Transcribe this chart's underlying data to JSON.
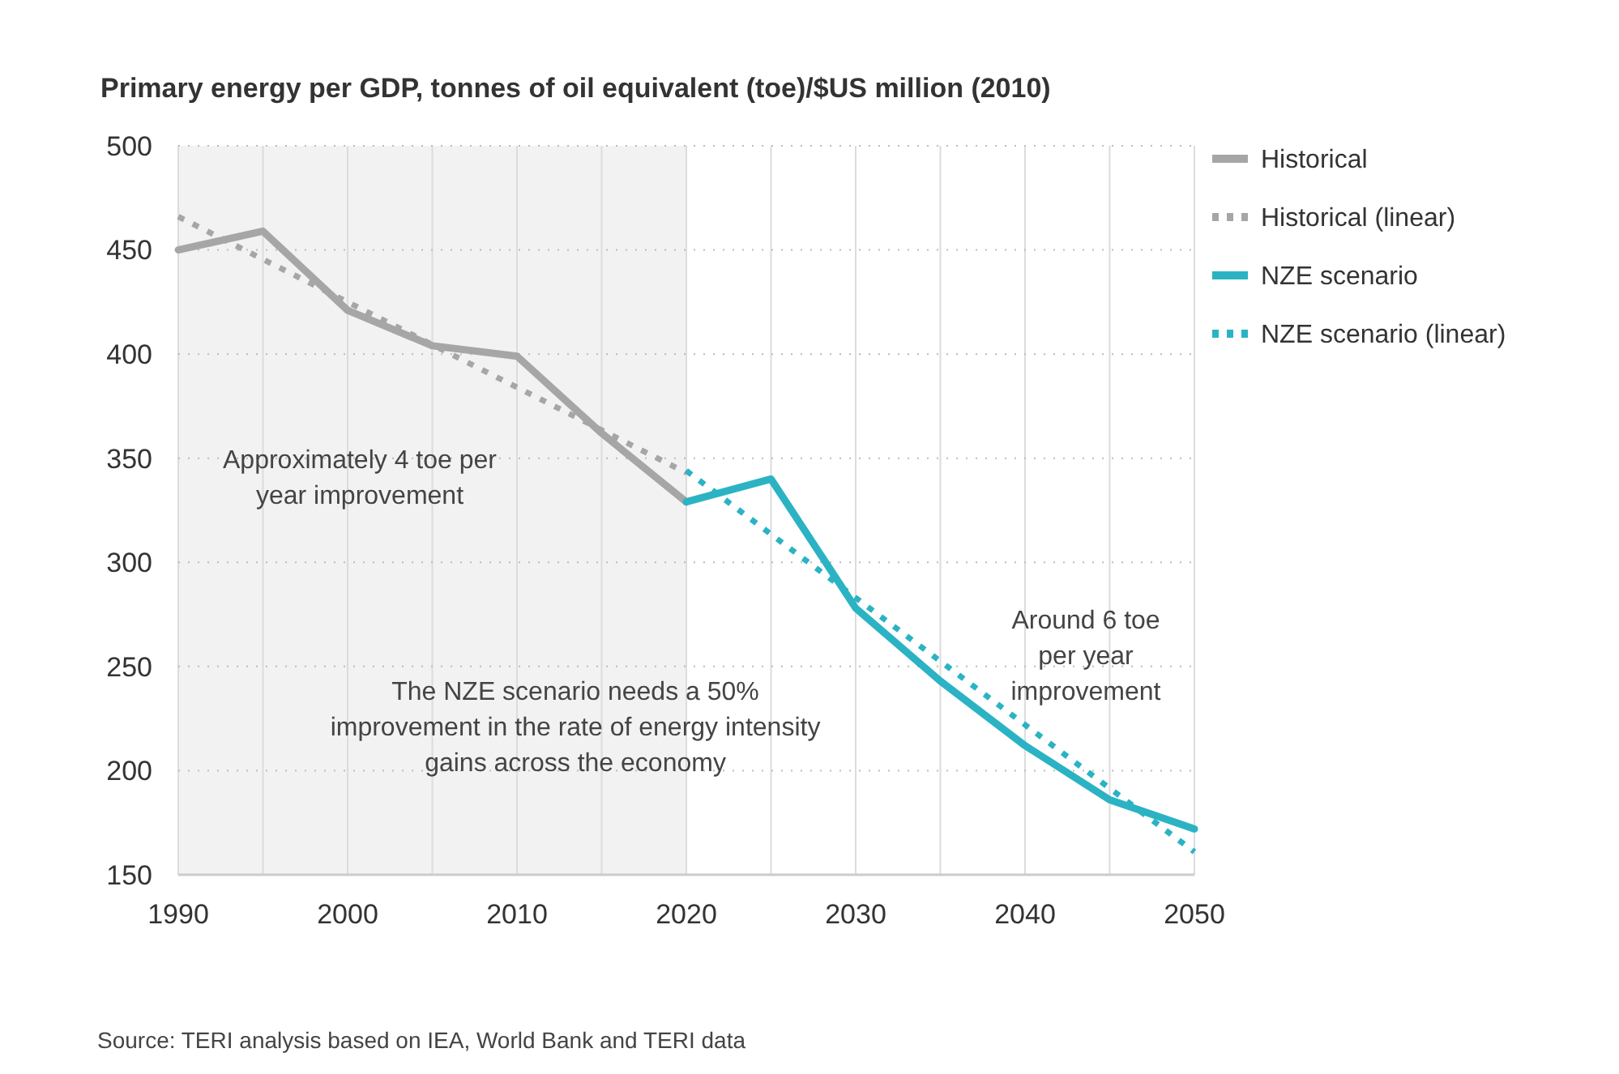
{
  "chart_data": {
    "type": "line",
    "title": "Primary energy per GDP, tonnes of oil equivalent (toe)/$US million (2010)",
    "xlim": [
      1990,
      2050
    ],
    "ylim": [
      150,
      500
    ],
    "xticks": [
      1990,
      {
        "value": 1995,
        "label": null
      },
      2000,
      {
        "value": 2005,
        "label": null
      },
      2010,
      {
        "value": 2015,
        "label": null
      },
      2020,
      {
        "value": 2025,
        "label": null
      },
      2030,
      {
        "value": 2035,
        "label": null
      },
      2040,
      {
        "value": 2045,
        "label": null
      },
      2050
    ],
    "yticks": [
      150,
      200,
      250,
      300,
      350,
      400,
      450,
      500
    ],
    "grid": true,
    "legend": "right",
    "bands": [
      {
        "axis": "x",
        "from": 1990,
        "to": 2020,
        "color": "#f2f2f2"
      }
    ],
    "series": [
      {
        "name": "Historical",
        "color": "#a6a6a6",
        "line_style": "solid",
        "x": [
          1990,
          1995,
          2000,
          2005,
          2010,
          2015,
          2020
        ],
        "values": [
          450,
          459,
          421,
          404,
          399,
          362,
          329
        ]
      },
      {
        "name": "Historical (linear)",
        "color": "#a6a6a6",
        "line_style": "dotted",
        "x": [
          1990,
          2020
        ],
        "values": [
          466,
          343
        ]
      },
      {
        "name": "NZE scenario",
        "color": "#2bb3c4",
        "line_style": "solid",
        "x": [
          2020,
          2025,
          2030,
          2035,
          2040,
          2045,
          2050
        ],
        "values": [
          329,
          340,
          278,
          243,
          212,
          186,
          172
        ]
      },
      {
        "name": "NZE scenario (linear)",
        "color": "#2bb3c4",
        "line_style": "dotted",
        "x": [
          2020,
          2050
        ],
        "values": [
          344,
          161
        ]
      }
    ],
    "annotations": [
      "Approximately 4 toe per\nyear improvement",
      "The NZE scenario needs a 50%\nimprovement in the rate of energy intensity\ngains across the economy",
      "Around 6 toe\nper year\nimprovement",
      "Source: TERI analysis based on IEA, World Bank and TERI data"
    ]
  }
}
